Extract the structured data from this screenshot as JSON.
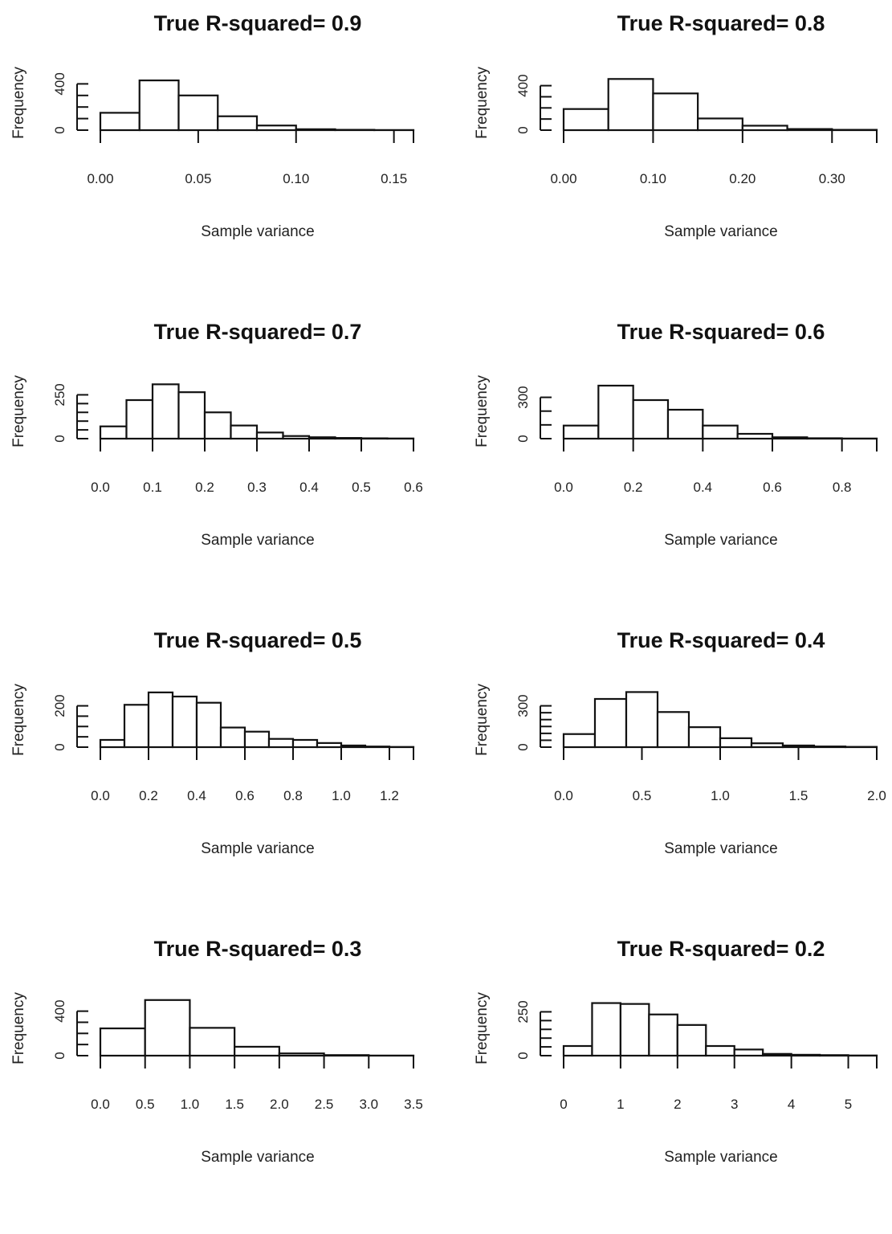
{
  "chart_data": [
    {
      "type": "bar",
      "title": "True R-squared= 0.9",
      "xlabel": "Sample variance",
      "ylabel": "Frequency",
      "xlim": [
        0,
        0.16
      ],
      "xticks": [
        "0.00",
        "0.05",
        "0.10",
        "0.15"
      ],
      "xtick_values": [
        0,
        0.05,
        0.1,
        0.15
      ],
      "ylim": [
        0,
        500
      ],
      "yticks": [
        "0",
        "400"
      ],
      "ytick_values": [
        0,
        400
      ],
      "ytick_minor": [
        100,
        200,
        300
      ],
      "bin_edges": [
        0,
        0.02,
        0.04,
        0.06,
        0.08,
        0.1,
        0.12,
        0.14,
        0.16
      ],
      "values": [
        150,
        430,
        300,
        120,
        40,
        8,
        3,
        1
      ]
    },
    {
      "type": "bar",
      "title": "True R-squared= 0.8",
      "xlabel": "Sample variance",
      "ylabel": "Frequency",
      "xlim": [
        0,
        0.35
      ],
      "xticks": [
        "0.00",
        "0.10",
        "0.20",
        "0.30"
      ],
      "xtick_values": [
        0,
        0.1,
        0.2,
        0.3
      ],
      "ylim": [
        0,
        520
      ],
      "yticks": [
        "0",
        "400"
      ],
      "ytick_values": [
        0,
        400
      ],
      "ytick_minor": [
        100,
        200,
        300
      ],
      "bin_edges": [
        0,
        0.05,
        0.1,
        0.15,
        0.2,
        0.25,
        0.3,
        0.35
      ],
      "values": [
        190,
        460,
        330,
        105,
        40,
        10,
        3
      ]
    },
    {
      "type": "bar",
      "title": "True R-squared= 0.7",
      "xlabel": "Sample variance",
      "ylabel": "Frequency",
      "xlim": [
        0,
        0.6
      ],
      "xticks": [
        "0.0",
        "0.1",
        "0.2",
        "0.3",
        "0.4",
        "0.5",
        "0.6"
      ],
      "xtick_values": [
        0,
        0.1,
        0.2,
        0.3,
        0.4,
        0.5,
        0.6
      ],
      "ylim": [
        0,
        330
      ],
      "yticks": [
        "0",
        "250"
      ],
      "ytick_values": [
        0,
        250
      ],
      "ytick_minor": [
        50,
        100,
        150,
        200
      ],
      "bin_edges": [
        0,
        0.05,
        0.1,
        0.15,
        0.2,
        0.25,
        0.3,
        0.35,
        0.4,
        0.45,
        0.5,
        0.55,
        0.6
      ],
      "values": [
        70,
        220,
        310,
        265,
        150,
        75,
        35,
        15,
        8,
        4,
        2,
        1
      ]
    },
    {
      "type": "bar",
      "title": "True R-squared= 0.6",
      "xlabel": "Sample variance",
      "ylabel": "Frequency",
      "xlim": [
        0,
        0.9
      ],
      "xticks": [
        "0.0",
        "0.2",
        "0.4",
        "0.6",
        "0.8"
      ],
      "xtick_values": [
        0,
        0.2,
        0.4,
        0.6,
        0.8
      ],
      "ylim": [
        0,
        420
      ],
      "yticks": [
        "0",
        "300"
      ],
      "ytick_values": [
        0,
        300
      ],
      "ytick_minor": [
        100,
        200
      ],
      "bin_edges": [
        0,
        0.1,
        0.2,
        0.3,
        0.4,
        0.5,
        0.6,
        0.7,
        0.8,
        0.9
      ],
      "values": [
        95,
        385,
        280,
        210,
        95,
        35,
        10,
        3,
        1
      ]
    },
    {
      "type": "bar",
      "title": "True R-squared= 0.5",
      "xlabel": "Sample variance",
      "ylabel": "Frequency",
      "xlim": [
        0,
        1.3
      ],
      "xticks": [
        "0.0",
        "0.2",
        "0.4",
        "0.6",
        "0.8",
        "1.0",
        "1.2"
      ],
      "xtick_values": [
        0,
        0.2,
        0.4,
        0.6,
        0.8,
        1.0,
        1.2
      ],
      "ylim": [
        0,
        280
      ],
      "yticks": [
        "0",
        "200"
      ],
      "ytick_values": [
        0,
        200
      ],
      "ytick_minor": [
        50,
        100,
        150
      ],
      "bin_edges": [
        0,
        0.1,
        0.2,
        0.3,
        0.4,
        0.5,
        0.6,
        0.7,
        0.8,
        0.9,
        1.0,
        1.1,
        1.2,
        1.3
      ],
      "values": [
        35,
        205,
        265,
        245,
        215,
        95,
        75,
        40,
        35,
        20,
        8,
        3,
        1
      ]
    },
    {
      "type": "bar",
      "title": "True R-squared= 0.4",
      "xlabel": "Sample variance",
      "ylabel": "Frequency",
      "xlim": [
        0,
        2.0
      ],
      "xticks": [
        "0.0",
        "0.5",
        "1.0",
        "1.5",
        "2.0"
      ],
      "xtick_values": [
        0,
        0.5,
        1.0,
        1.5,
        2.0
      ],
      "ylim": [
        0,
        420
      ],
      "yticks": [
        "0",
        "300"
      ],
      "ytick_values": [
        0,
        300
      ],
      "ytick_minor": [
        50,
        100,
        150,
        200,
        250
      ],
      "bin_edges": [
        0,
        0.2,
        0.4,
        0.6,
        0.8,
        1.0,
        1.2,
        1.4,
        1.6,
        1.8,
        2.0
      ],
      "values": [
        95,
        350,
        400,
        255,
        145,
        65,
        28,
        12,
        5,
        2
      ]
    },
    {
      "type": "bar",
      "title": "True R-squared= 0.3",
      "xlabel": "Sample variance",
      "ylabel": "Frequency",
      "xlim": [
        0,
        3.5
      ],
      "xticks": [
        "0.0",
        "0.5",
        "1.0",
        "1.5",
        "2.0",
        "2.5",
        "3.0",
        "3.5"
      ],
      "xtick_values": [
        0,
        0.5,
        1.0,
        1.5,
        2.0,
        2.5,
        3.0,
        3.5
      ],
      "ylim": [
        0,
        520
      ],
      "yticks": [
        "0",
        "400"
      ],
      "ytick_values": [
        0,
        400
      ],
      "ytick_minor": [
        100,
        200,
        300
      ],
      "bin_edges": [
        0,
        0.5,
        1.0,
        1.5,
        2.0,
        2.5,
        3.0,
        3.5
      ],
      "values": [
        245,
        500,
        250,
        80,
        20,
        5,
        1
      ]
    },
    {
      "type": "bar",
      "title": "True R-squared= 0.2",
      "xlabel": "Sample variance",
      "ylabel": "Frequency",
      "xlim": [
        0,
        5.5
      ],
      "xticks": [
        "0",
        "1",
        "2",
        "3",
        "4",
        "5"
      ],
      "xtick_values": [
        0,
        1,
        2,
        3,
        4,
        5
      ],
      "ylim": [
        0,
        330
      ],
      "yticks": [
        "0",
        "250"
      ],
      "ytick_values": [
        0,
        250
      ],
      "ytick_minor": [
        50,
        100,
        150,
        200
      ],
      "bin_edges": [
        0,
        0.5,
        1.0,
        1.5,
        2.0,
        2.5,
        3.0,
        3.5,
        4.0,
        4.5,
        5.0,
        5.5
      ],
      "values": [
        55,
        300,
        295,
        235,
        175,
        55,
        35,
        10,
        5,
        3,
        1
      ]
    }
  ]
}
